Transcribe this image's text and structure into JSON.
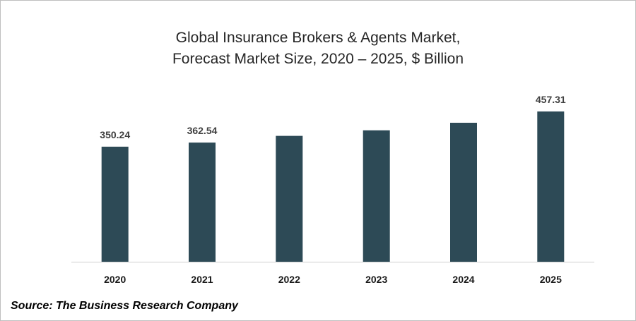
{
  "chart_data": {
    "type": "bar",
    "title_lines": [
      "Global Insurance Brokers & Agents Market,",
      "Forecast Market Size, 2020 – 2025, $ Billion"
    ],
    "categories": [
      "2020",
      "2021",
      "2022",
      "2023",
      "2024",
      "2025"
    ],
    "values": [
      350.24,
      362.54,
      383,
      400,
      423,
      457.31
    ],
    "data_labels": [
      "350.24",
      "362.54",
      "",
      "",
      "",
      "457.31"
    ],
    "xlabel": "",
    "ylabel": "",
    "ylim": [
      0,
      457.31
    ],
    "grid": false,
    "legend": "none",
    "bar_color": "#2d4a56"
  },
  "source": "Source: The Business Research Company"
}
